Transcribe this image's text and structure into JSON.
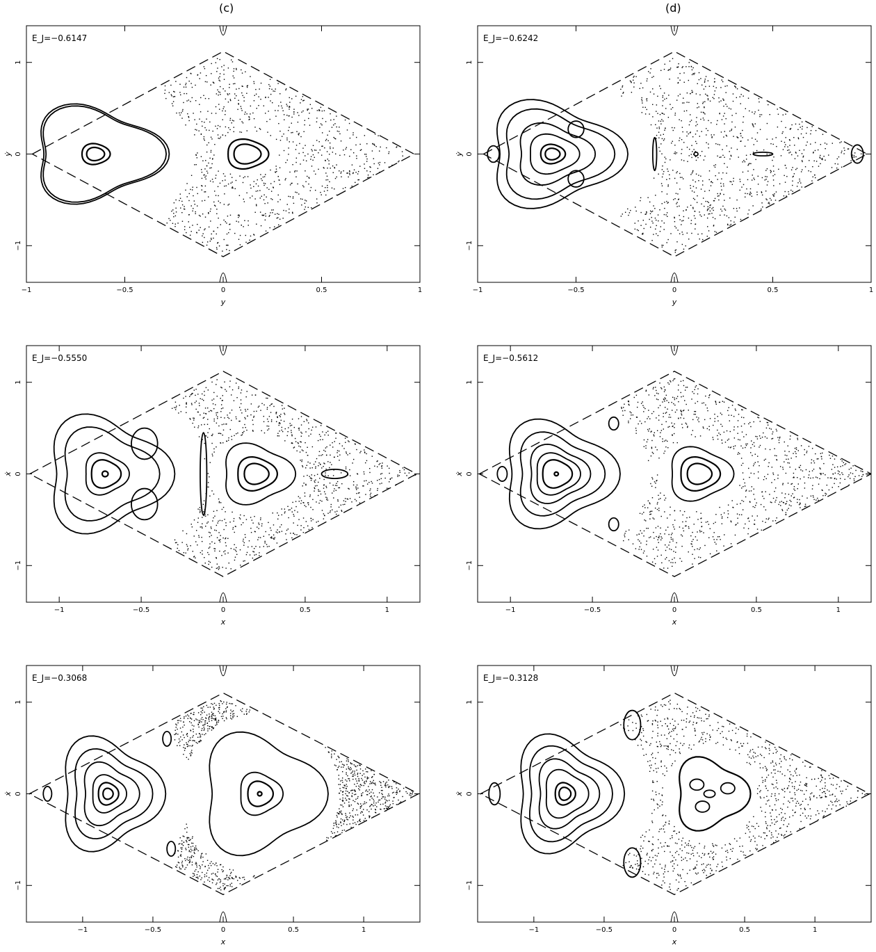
{
  "columns": [
    "(c)",
    "(d)"
  ],
  "chart_data": [
    {
      "type": "scatter",
      "column": "(c)",
      "row": 1,
      "energy_label": "E_J=−0.6147",
      "xlim": [
        -1,
        1
      ],
      "ylim": [
        -1.4,
        1.4
      ],
      "xticks": [
        -1,
        -0.5,
        0,
        0.5,
        1
      ],
      "xtick_labels": [
        "−1",
        "−0.5",
        "0",
        "0.5",
        "1"
      ],
      "yticks": [
        -1,
        0,
        1
      ],
      "ytick_labels": [
        "−1",
        "0",
        "1"
      ],
      "xlabel": "y",
      "ylabel": "ẏ",
      "rhombus_x": [
        -0.97,
        0.97
      ],
      "rhombus_y": 1.12,
      "cusp_x": 0.0,
      "chaos_x": [
        -0.3,
        0.97
      ],
      "families": [
        {
          "kind": "loops",
          "cx": -0.65,
          "cy": 0.0,
          "scales": [
            0.07,
            0.11,
            0.47,
            0.49
          ],
          "a": 0.52,
          "b": 0.82
        },
        {
          "kind": "loops",
          "cx": 0.12,
          "cy": 0.0,
          "scales": [
            0.1,
            0.15
          ],
          "a": 0.55,
          "b": 0.85
        }
      ]
    },
    {
      "type": "scatter",
      "column": "(d)",
      "row": 1,
      "energy_label": "E_J=−0.6242",
      "xlim": [
        -1,
        1
      ],
      "ylim": [
        -1.4,
        1.4
      ],
      "xticks": [
        -1,
        -0.5,
        0,
        0.5,
        1
      ],
      "xtick_labels": [
        "−1",
        "−0.5",
        "0",
        "0.5",
        "1"
      ],
      "yticks": [
        -1,
        0,
        1
      ],
      "ytick_labels": [
        "−1",
        "0",
        "1"
      ],
      "xlabel": "y",
      "ylabel": "ẏ",
      "rhombus_x": [
        -0.97,
        0.98
      ],
      "rhombus_y": 1.12,
      "cusp_x": 0.0,
      "chaos_x": [
        -0.28,
        0.98
      ],
      "families": [
        {
          "kind": "loops",
          "cx": -0.62,
          "cy": 0.0,
          "scales": [
            0.06,
            0.1,
            0.2,
            0.3,
            0.43,
            0.52
          ],
          "a": 0.5,
          "b": 0.84
        },
        {
          "kind": "island",
          "cx": -0.5,
          "cy": 0.27,
          "rx": 0.04,
          "ry": 0.09
        },
        {
          "kind": "island",
          "cx": -0.5,
          "cy": -0.27,
          "rx": 0.04,
          "ry": 0.09
        },
        {
          "kind": "island",
          "cx": -0.92,
          "cy": 0.0,
          "rx": 0.03,
          "ry": 0.09
        },
        {
          "kind": "island",
          "cx": -0.1,
          "cy": 0.0,
          "rx": 0.01,
          "ry": 0.18
        },
        {
          "kind": "island",
          "cx": 0.11,
          "cy": 0.0,
          "rx": 0.01,
          "ry": 0.02
        },
        {
          "kind": "island",
          "cx": 0.45,
          "cy": 0.0,
          "rx": 0.05,
          "ry": 0.02
        },
        {
          "kind": "island",
          "cx": 0.93,
          "cy": 0.0,
          "rx": 0.03,
          "ry": 0.1
        }
      ]
    },
    {
      "type": "scatter",
      "column": "(c)",
      "row": 2,
      "energy_label": "E_J=−0.5550",
      "xlim": [
        -1.2,
        1.2
      ],
      "ylim": [
        -1.4,
        1.4
      ],
      "xticks": [
        -1,
        -0.5,
        0,
        0.5,
        1
      ],
      "xtick_labels": [
        "−1",
        "−0.5",
        "0",
        "0.5",
        "1"
      ],
      "yticks": [
        -1,
        0,
        1
      ],
      "ytick_labels": [
        "−1",
        "0",
        "1"
      ],
      "xlabel": "x",
      "ylabel": "ẋ",
      "rhombus_x": [
        -1.18,
        1.18
      ],
      "rhombus_y": 1.12,
      "cusp_x": 0.0,
      "chaos_x": [
        -0.32,
        1.18
      ],
      "families": [
        {
          "kind": "loops",
          "cx": -0.72,
          "cy": 0.0,
          "scales": [
            0.03,
            0.15,
            0.22,
            0.47,
            0.6
          ],
          "a": 0.48,
          "b": 0.8
        },
        {
          "kind": "island",
          "cx": -0.48,
          "cy": 0.33,
          "rx": 0.08,
          "ry": 0.17
        },
        {
          "kind": "island",
          "cx": -0.48,
          "cy": -0.33,
          "rx": 0.08,
          "ry": 0.17
        },
        {
          "kind": "island",
          "cx": -0.12,
          "cy": 0.0,
          "rx": 0.02,
          "ry": 0.45
        },
        {
          "kind": "loops",
          "cx": 0.2,
          "cy": 0.0,
          "scales": [
            0.1,
            0.16,
            0.28
          ],
          "a": 0.6,
          "b": 0.9
        },
        {
          "kind": "island",
          "cx": 0.68,
          "cy": 0.0,
          "rx": 0.08,
          "ry": 0.05
        }
      ]
    },
    {
      "type": "scatter",
      "column": "(d)",
      "row": 2,
      "energy_label": "E_J=−0.5612",
      "xlim": [
        -1.2,
        1.2
      ],
      "ylim": [
        -1.4,
        1.4
      ],
      "xticks": [
        -1,
        -0.5,
        0,
        0.5,
        1
      ],
      "xtick_labels": [
        "−1",
        "−0.5",
        "0",
        "0.5",
        "1"
      ],
      "yticks": [
        -1,
        0,
        1
      ],
      "ytick_labels": [
        "−1",
        "0",
        "1"
      ],
      "xlabel": "x",
      "ylabel": "ẋ",
      "rhombus_x": [
        -1.19,
        1.2
      ],
      "rhombus_y": 1.12,
      "cusp_x": 0.0,
      "chaos_x": [
        -0.33,
        1.2
      ],
      "families": [
        {
          "kind": "loops",
          "cx": -0.72,
          "cy": 0.0,
          "scales": [
            0.02,
            0.15,
            0.22,
            0.3,
            0.42,
            0.55
          ],
          "a": 0.48,
          "b": 0.8
        },
        {
          "kind": "island",
          "cx": -1.05,
          "cy": 0.0,
          "rx": 0.03,
          "ry": 0.08
        },
        {
          "kind": "island",
          "cx": -0.37,
          "cy": 0.55,
          "rx": 0.03,
          "ry": 0.07
        },
        {
          "kind": "island",
          "cx": -0.37,
          "cy": -0.55,
          "rx": 0.03,
          "ry": 0.07
        },
        {
          "kind": "loops",
          "cx": 0.15,
          "cy": 0.0,
          "scales": [
            0.1,
            0.16,
            0.25
          ],
          "a": 0.6,
          "b": 0.9
        }
      ]
    },
    {
      "type": "scatter",
      "column": "(c)",
      "row": 3,
      "energy_label": "E_J=−0.3068",
      "xlim": [
        -1.4,
        1.4
      ],
      "ylim": [
        -1.4,
        1.4
      ],
      "xticks": [
        -1,
        -0.5,
        0,
        0.5,
        1
      ],
      "xtick_labels": [
        "−1",
        "−0.5",
        "0",
        "0.5",
        "1"
      ],
      "yticks": [
        -1,
        0,
        1
      ],
      "ytick_labels": [
        "−1",
        "0",
        "1"
      ],
      "xlabel": "x",
      "ylabel": "ẋ",
      "rhombus_x": [
        -1.38,
        1.39
      ],
      "rhombus_y": 1.1,
      "cusp_x": 0.0,
      "chaos_x": [
        -0.35,
        1.39
      ],
      "families": [
        {
          "kind": "loops",
          "cx": -0.82,
          "cy": 0.0,
          "scales": [
            0.06,
            0.12,
            0.2,
            0.32,
            0.45,
            0.58
          ],
          "a": 0.48,
          "b": 0.8
        },
        {
          "kind": "island",
          "cx": -1.25,
          "cy": 0.0,
          "rx": 0.03,
          "ry": 0.08
        },
        {
          "kind": "island",
          "cx": -0.4,
          "cy": 0.6,
          "rx": 0.03,
          "ry": 0.08
        },
        {
          "kind": "island",
          "cx": -0.37,
          "cy": -0.6,
          "rx": 0.03,
          "ry": 0.08
        },
        {
          "kind": "loops",
          "cx": 0.26,
          "cy": 0.0,
          "scales": [
            0.02,
            0.12,
            0.2,
            0.55
          ],
          "a": 0.6,
          "b": 0.9
        }
      ]
    },
    {
      "type": "scatter",
      "column": "(d)",
      "row": 3,
      "energy_label": "E_J=−0.3128",
      "xlim": [
        -1.4,
        1.4
      ],
      "ylim": [
        -1.4,
        1.4
      ],
      "xticks": [
        -1,
        -0.5,
        0,
        0.5,
        1
      ],
      "xtick_labels": [
        "−1",
        "−0.5",
        "0",
        "0.5",
        "1"
      ],
      "yticks": [
        -1,
        0,
        1
      ],
      "ytick_labels": [
        "−1",
        "0",
        "1"
      ],
      "xlabel": "x",
      "ylabel": "ẋ",
      "rhombus_x": [
        -1.38,
        1.39
      ],
      "rhombus_y": 1.1,
      "cusp_x": 0.0,
      "chaos_x": [
        -0.48,
        1.39
      ],
      "families": [
        {
          "kind": "loops",
          "cx": -0.78,
          "cy": 0.0,
          "scales": [
            0.07,
            0.12,
            0.25,
            0.35,
            0.48,
            0.6
          ],
          "a": 0.48,
          "b": 0.8
        },
        {
          "kind": "island",
          "cx": -1.28,
          "cy": 0.0,
          "rx": 0.04,
          "ry": 0.12
        },
        {
          "kind": "island",
          "cx": -0.3,
          "cy": 0.75,
          "rx": 0.06,
          "ry": 0.16
        },
        {
          "kind": "island",
          "cx": -0.3,
          "cy": -0.75,
          "rx": 0.06,
          "ry": 0.16
        },
        {
          "kind": "loops",
          "cx": 0.25,
          "cy": 0.0,
          "scales": [
            0.33
          ],
          "a": 0.6,
          "b": 0.9
        },
        {
          "kind": "island",
          "cx": 0.25,
          "cy": 0.0,
          "rx": 0.04,
          "ry": 0.04
        },
        {
          "kind": "island",
          "cx": 0.38,
          "cy": 0.06,
          "rx": 0.05,
          "ry": 0.06
        },
        {
          "kind": "island",
          "cx": 0.16,
          "cy": 0.1,
          "rx": 0.05,
          "ry": 0.06
        },
        {
          "kind": "island",
          "cx": 0.2,
          "cy": -0.14,
          "rx": 0.05,
          "ry": 0.06
        }
      ]
    }
  ]
}
